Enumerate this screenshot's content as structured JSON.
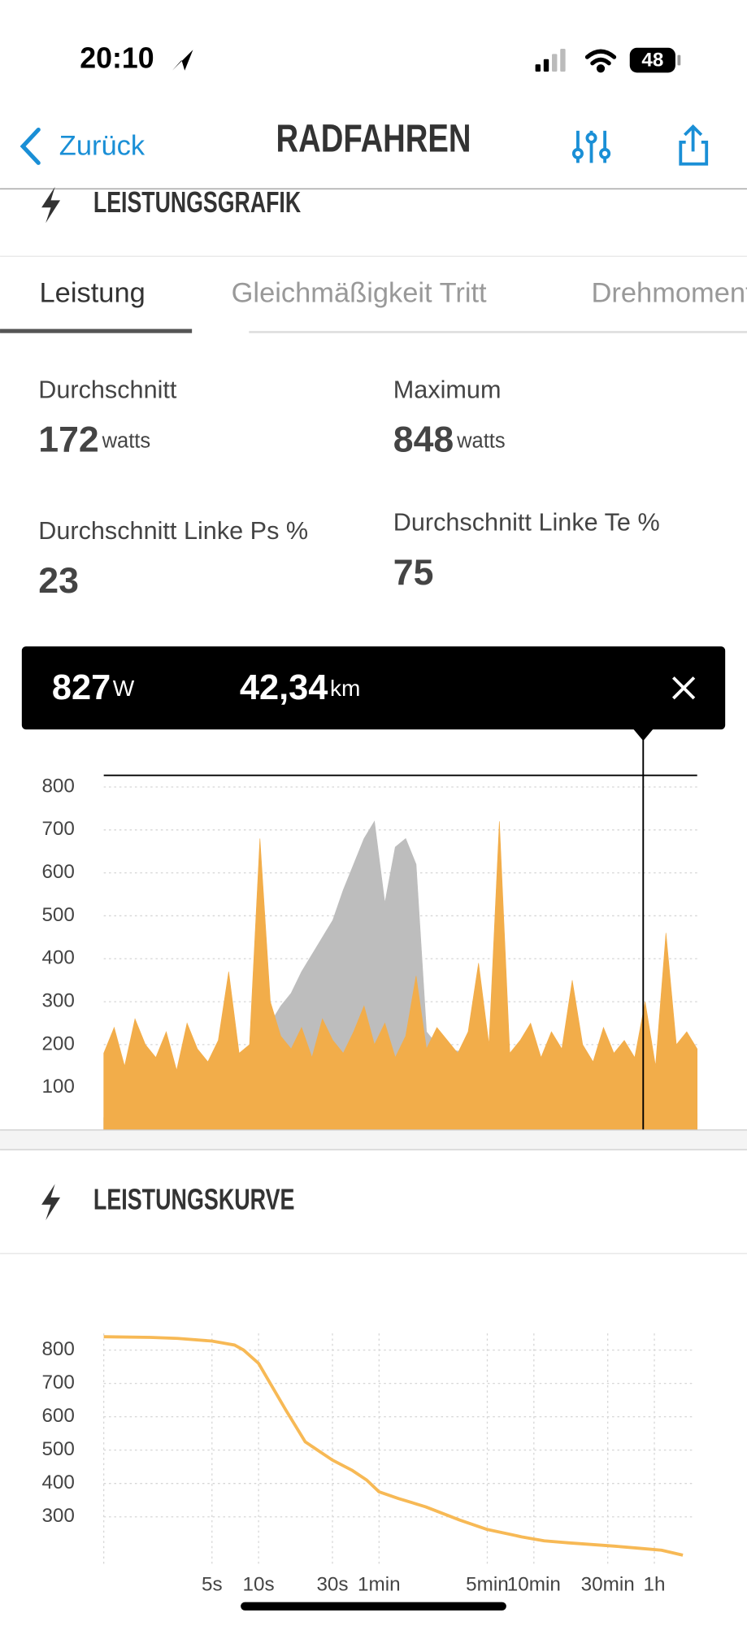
{
  "status_bar": {
    "time": "20:10",
    "battery": "48"
  },
  "nav": {
    "back": "Zurück",
    "title": "RADFAHREN"
  },
  "sections": [
    {
      "title": "LEISTUNGSGRAFIK"
    },
    {
      "title": "LEISTUNGSKURVE"
    }
  ],
  "tabs": [
    "Leistung",
    "Gleichmäßigkeit Tritt",
    "Drehmoment"
  ],
  "stats": [
    {
      "label": "Durchschnitt",
      "value": 172,
      "unit": "watts"
    },
    {
      "label": "Maximum",
      "value": 848,
      "unit": "watts"
    },
    {
      "label": "Durchschnitt Linke Ps %",
      "value": 23
    },
    {
      "label": "Durchschnitt Linke Te %",
      "value": 75
    }
  ],
  "tooltip": {
    "power": 827,
    "power_unit": "W",
    "distance": "42,34",
    "distance_unit": "km"
  },
  "chart_data": [
    {
      "type": "area",
      "ylim": [
        0,
        830
      ],
      "yticks": [
        100,
        200,
        300,
        400,
        500,
        600,
        700,
        800
      ],
      "grid": true,
      "series": [
        {
          "color": "#bdbdbd",
          "values": [
            30,
            30,
            35,
            40,
            40,
            50,
            60,
            70,
            80,
            90,
            100,
            110,
            130,
            150,
            170,
            210,
            250,
            290,
            320,
            370,
            410,
            450,
            490,
            560,
            620,
            680,
            720,
            530,
            660,
            680,
            620,
            230,
            200,
            190,
            185,
            180,
            170,
            170,
            165,
            165,
            160,
            150,
            130,
            110,
            90,
            80,
            75,
            70,
            70,
            65,
            60,
            55,
            50,
            45,
            45,
            45,
            40,
            40
          ]
        },
        {
          "color": "#f2ad4a",
          "values": [
            180,
            240,
            150,
            260,
            200,
            170,
            230,
            140,
            250,
            190,
            160,
            210,
            370,
            180,
            200,
            680,
            300,
            220,
            190,
            240,
            170,
            260,
            210,
            180,
            230,
            290,
            200,
            250,
            170,
            220,
            360,
            190,
            240,
            210,
            180,
            230,
            390,
            200,
            720,
            180,
            210,
            250,
            170,
            230,
            190,
            350,
            200,
            160,
            240,
            180,
            210,
            170,
            300,
            150,
            460,
            200,
            230,
            190
          ]
        }
      ]
    },
    {
      "type": "line",
      "xscale": "log",
      "xlim": [
        1,
        6600
      ],
      "ylim": [
        150,
        850
      ],
      "xticks": [
        {
          "value": 5,
          "label": "5s"
        },
        {
          "value": 10,
          "label": "10s"
        },
        {
          "value": 30,
          "label": "30s"
        },
        {
          "value": 60,
          "label": "1min"
        },
        {
          "value": 300,
          "label": "5min"
        },
        {
          "value": 600,
          "label": "10min"
        },
        {
          "value": 1800,
          "label": "30min"
        },
        {
          "value": 3600,
          "label": "1h"
        }
      ],
      "yticks": [
        300,
        400,
        500,
        600,
        700,
        800
      ],
      "grid": true,
      "color": "#f7b955",
      "x": [
        1,
        2,
        3,
        5,
        7,
        8,
        10,
        15,
        20,
        30,
        40,
        50,
        60,
        80,
        120,
        200,
        300,
        500,
        700,
        1000,
        2000,
        3000,
        4000,
        5500
      ],
      "values": [
        840,
        838,
        835,
        827,
        815,
        800,
        760,
        620,
        525,
        470,
        440,
        410,
        375,
        355,
        330,
        290,
        262,
        240,
        228,
        222,
        212,
        205,
        200,
        185
      ]
    }
  ]
}
